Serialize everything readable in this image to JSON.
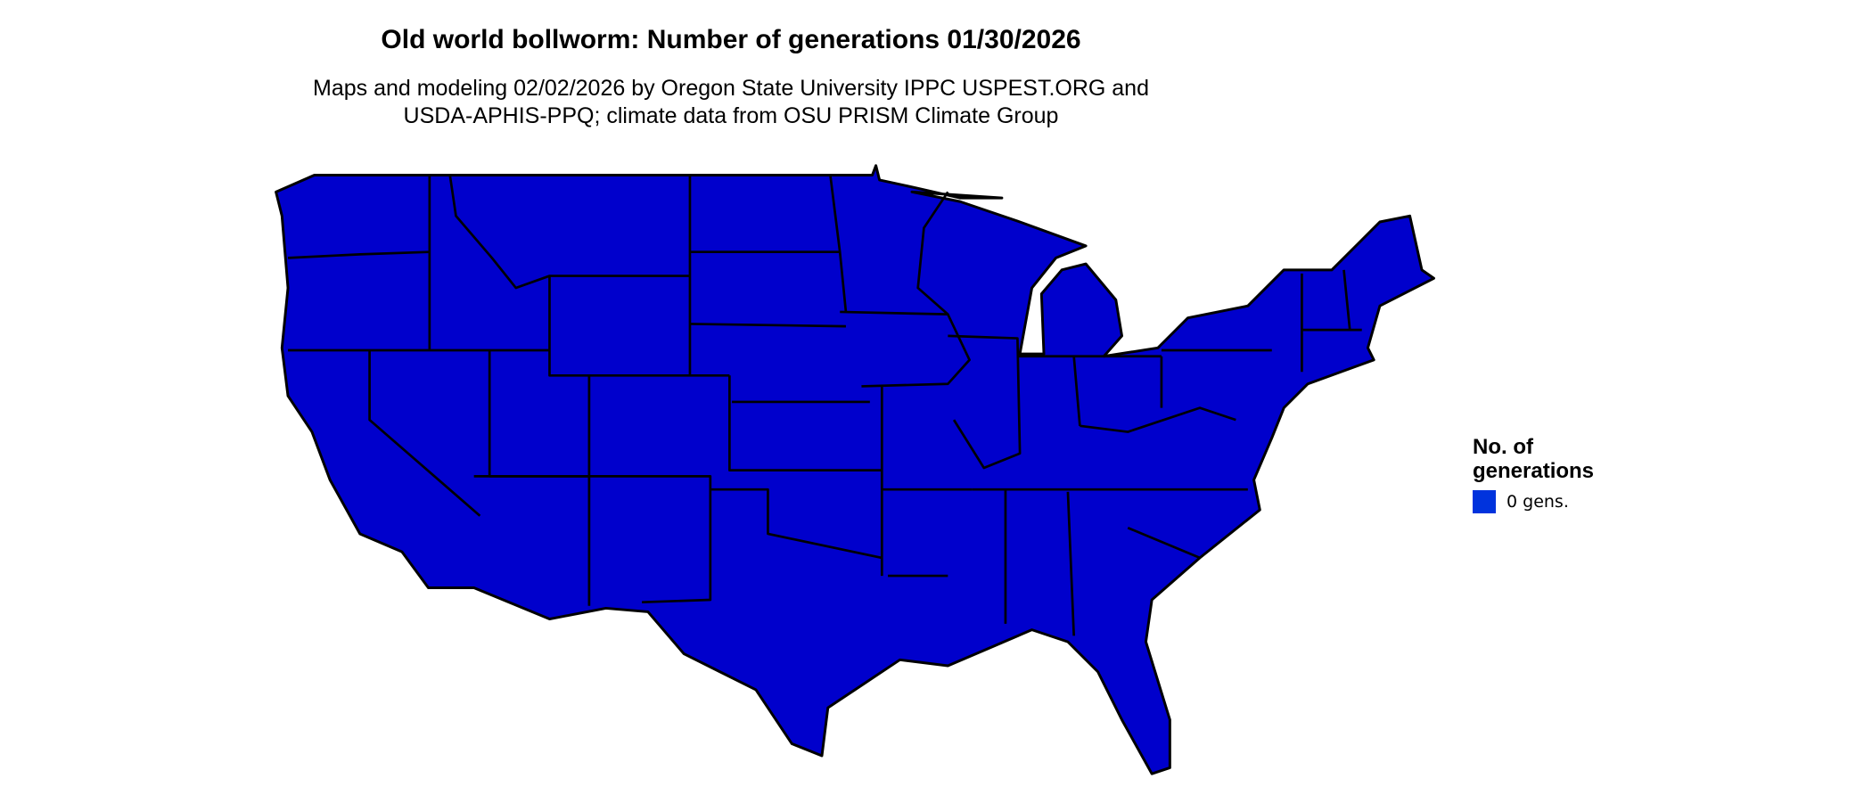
{
  "title": "Old world bollworm: Number of generations 01/30/2026",
  "subtitle_line1": "Maps and modeling 02/02/2026 by Oregon State University IPPC USPEST.ORG and",
  "subtitle_line2": "USDA-APHIS-PPQ; climate data from OSU PRISM Climate Group",
  "map": {
    "region": "Contiguous United States",
    "fill_color": "#0000CC",
    "border_color": "#000000"
  },
  "legend": {
    "title_line1": "No. of",
    "title_line2": "generations",
    "items": [
      {
        "label": "0 gens.",
        "color": "#0033DD"
      }
    ]
  }
}
